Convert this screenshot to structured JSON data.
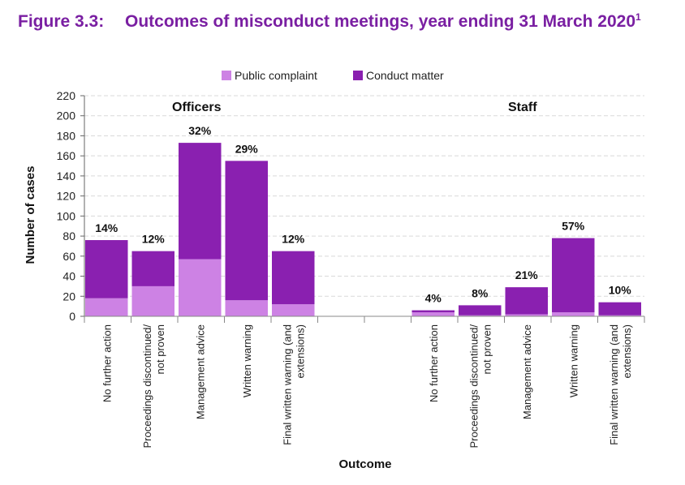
{
  "figure": {
    "number": "Figure 3.3:",
    "text": "Outcomes of misconduct meetings, year ending 31 March 2020",
    "footnote": "1"
  },
  "colors": {
    "public": "#cd82e4",
    "conduct": "#8a20b0",
    "grid": "#d9d9d9",
    "title": "#7a1fa2"
  },
  "chart_data": {
    "type": "bar",
    "stacked": true,
    "title": "Outcomes of misconduct meetings, year ending 31 March 2020",
    "xlabel": "Outcome",
    "ylabel": "Number of cases",
    "ylim": [
      0,
      220
    ],
    "yticks": [
      0,
      20,
      40,
      60,
      80,
      100,
      120,
      140,
      160,
      180,
      200,
      220
    ],
    "grid": true,
    "legend": {
      "position": "top-center",
      "entries": [
        "Public complaint",
        "Conduct matter"
      ]
    },
    "groups": [
      "Officers",
      "Staff"
    ],
    "categories": [
      {
        "group": "Officers",
        "lines": [
          "No further action"
        ]
      },
      {
        "group": "Officers",
        "lines": [
          "Proceedings discontinued/",
          "not proven"
        ]
      },
      {
        "group": "Officers",
        "lines": [
          "Management advice"
        ]
      },
      {
        "group": "Officers",
        "lines": [
          "Written warning"
        ]
      },
      {
        "group": "Officers",
        "lines": [
          "Final written warning (and",
          "extensions)"
        ]
      },
      {
        "group": "",
        "lines": []
      },
      {
        "group": "",
        "lines": []
      },
      {
        "group": "Staff",
        "lines": [
          "No further action"
        ]
      },
      {
        "group": "Staff",
        "lines": [
          "Proceedings discontinued/",
          "not proven"
        ]
      },
      {
        "group": "Staff",
        "lines": [
          "Management advice"
        ]
      },
      {
        "group": "Staff",
        "lines": [
          "Written warning"
        ]
      },
      {
        "group": "Staff",
        "lines": [
          "Final written warning (and",
          "extensions)"
        ]
      }
    ],
    "series": [
      {
        "name": "Public complaint",
        "values": [
          18,
          30,
          57,
          16,
          12,
          null,
          null,
          4,
          1,
          2,
          4,
          1
        ]
      },
      {
        "name": "Conduct matter",
        "values": [
          58,
          35,
          116,
          139,
          53,
          null,
          null,
          2,
          10,
          27,
          74,
          13
        ]
      }
    ],
    "data_labels": [
      "14%",
      "12%",
      "32%",
      "29%",
      "12%",
      "",
      "",
      "4%",
      "8%",
      "21%",
      "57%",
      "10%"
    ]
  }
}
